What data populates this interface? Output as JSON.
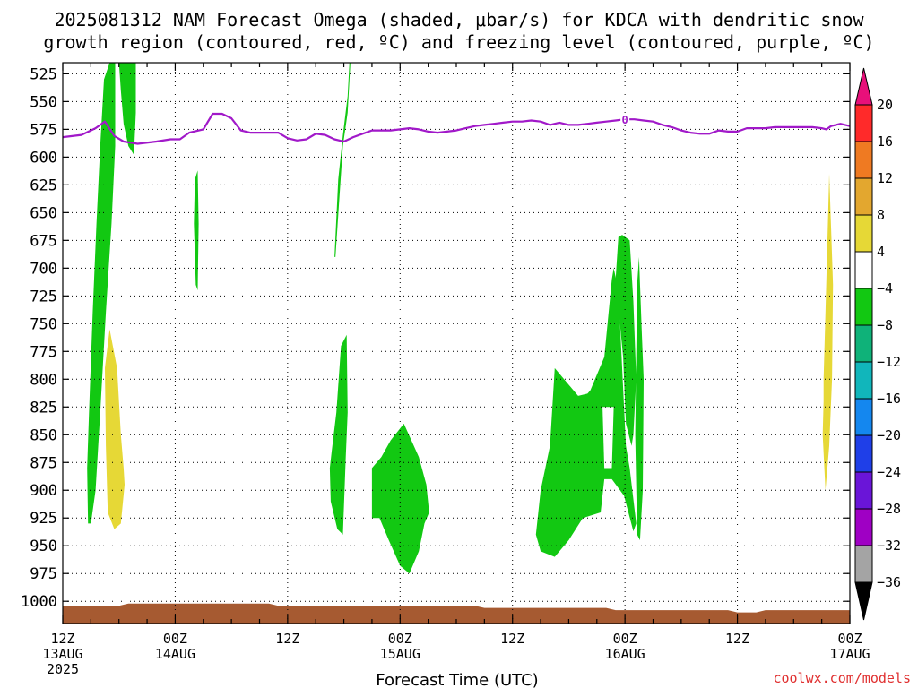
{
  "chart_data": {
    "type": "heatmap",
    "title_line1": "2025081312 NAM Forecast Omega (shaded, μbar/s) for KDCA with dendritic snow",
    "title_line2": "growth region (contoured, red, ºC) and freezing level (contoured, purple, ºC)",
    "xlabel": "Forecast Time (UTC)",
    "credit": "coolwx.com/models",
    "x_range_hours": [
      0,
      84
    ],
    "y_range_mb": [
      1020,
      515
    ],
    "y_ticks": [
      525,
      550,
      575,
      600,
      625,
      650,
      675,
      700,
      725,
      750,
      775,
      800,
      825,
      850,
      875,
      900,
      925,
      950,
      975,
      1000
    ],
    "x_ticks": [
      {
        "hour": 0,
        "line1": "12Z",
        "line2": "13AUG",
        "line3": "2025"
      },
      {
        "hour": 12,
        "line1": "00Z",
        "line2": "14AUG",
        "line3": ""
      },
      {
        "hour": 24,
        "line1": "12Z",
        "line2": "",
        "line3": ""
      },
      {
        "hour": 36,
        "line1": "00Z",
        "line2": "15AUG",
        "line3": ""
      },
      {
        "hour": 48,
        "line1": "12Z",
        "line2": "",
        "line3": ""
      },
      {
        "hour": 60,
        "line1": "00Z",
        "line2": "16AUG",
        "line3": ""
      },
      {
        "hour": 72,
        "line1": "12Z",
        "line2": "",
        "line3": ""
      },
      {
        "hour": 84,
        "line1": "00Z",
        "line2": "17AUG",
        "line3": ""
      }
    ],
    "colorbar": {
      "labels": [
        "20",
        "16",
        "12",
        "8",
        "4",
        "−4",
        "−8",
        "−12",
        "−16",
        "−20",
        "−24",
        "−28",
        "−32",
        "−36"
      ],
      "colors": [
        "#ff2a2a",
        "#ef7a22",
        "#e3a72f",
        "#e6d836",
        "#ffffff",
        "#12c812",
        "#0fb279",
        "#11b6bb",
        "#1487ef",
        "#1f3fe8",
        "#6a15d8",
        "#9f00c4",
        "#a4a4a4"
      ],
      "top_arrow_color": "#e8107a",
      "bottom_arrow_color": "#000000"
    },
    "series": [
      {
        "name": "freezing level",
        "label": "0",
        "color": "#a119c9",
        "points": [
          [
            0,
            582
          ],
          [
            2,
            580
          ],
          [
            3.5,
            574
          ],
          [
            4.5,
            568
          ],
          [
            5.5,
            581
          ],
          [
            6.5,
            586
          ],
          [
            8,
            588
          ],
          [
            10,
            586
          ],
          [
            11.5,
            584
          ],
          [
            12.5,
            584
          ],
          [
            13.5,
            578
          ],
          [
            15,
            575
          ],
          [
            16,
            561
          ],
          [
            17,
            561
          ],
          [
            18,
            565
          ],
          [
            19,
            576
          ],
          [
            20,
            578
          ],
          [
            22,
            578
          ],
          [
            23,
            578
          ],
          [
            24,
            583
          ],
          [
            25,
            585
          ],
          [
            26,
            584
          ],
          [
            27,
            579
          ],
          [
            28,
            580
          ],
          [
            29,
            584
          ],
          [
            30,
            586
          ],
          [
            31,
            582
          ],
          [
            32,
            579
          ],
          [
            33,
            576
          ],
          [
            34,
            576
          ],
          [
            35,
            576
          ],
          [
            36,
            575
          ],
          [
            37,
            574
          ],
          [
            38,
            575
          ],
          [
            39,
            577
          ],
          [
            40,
            578
          ],
          [
            41,
            577
          ],
          [
            42,
            576
          ],
          [
            43,
            574
          ],
          [
            44,
            572
          ],
          [
            45,
            571
          ],
          [
            46,
            570
          ],
          [
            47,
            569
          ],
          [
            48,
            568
          ],
          [
            49,
            568
          ],
          [
            50,
            567
          ],
          [
            51,
            568
          ],
          [
            52,
            571
          ],
          [
            53,
            569
          ],
          [
            54,
            571
          ],
          [
            55,
            571
          ],
          [
            56,
            570
          ],
          [
            57,
            569
          ],
          [
            58,
            568
          ],
          [
            59,
            567
          ],
          [
            60,
            566
          ],
          [
            61,
            566
          ],
          [
            62,
            567
          ],
          [
            63,
            568
          ],
          [
            64,
            571
          ],
          [
            65,
            573
          ],
          [
            66,
            576
          ],
          [
            67,
            578
          ],
          [
            68,
            579
          ],
          [
            69,
            579
          ],
          [
            70,
            576
          ],
          [
            71,
            577
          ],
          [
            72,
            577
          ],
          [
            73,
            574
          ],
          [
            74,
            574
          ],
          [
            75,
            574
          ],
          [
            76,
            573
          ],
          [
            77,
            573
          ],
          [
            78,
            573
          ],
          [
            79,
            573
          ],
          [
            80,
            573
          ],
          [
            81,
            574
          ],
          [
            81.5,
            575
          ],
          [
            82,
            572
          ],
          [
            83,
            570
          ],
          [
            84,
            572
          ]
        ]
      }
    ],
    "omega_regions": [
      {
        "value_bin": "-4 to -8",
        "color": "#12c812",
        "hours": [
          2.6,
          2.8,
          3.2,
          3.6,
          4.0,
          4.4,
          5.0,
          5.6,
          5.6,
          5.2,
          4.6,
          4.0,
          3.5,
          3.0,
          2.7
        ],
        "pressures": [
          880,
          830,
          740,
          660,
          590,
          530,
          515,
          515,
          590,
          660,
          740,
          830,
          900,
          930,
          930
        ]
      },
      {
        "value_bin": "-4 to -8",
        "color": "#12c812",
        "hours": [
          6.0,
          7.0,
          7.8,
          7.8,
          7.6,
          7.0,
          6.5,
          6.2
        ],
        "pressures": [
          515,
          515,
          515,
          560,
          598,
          590,
          570,
          540
        ]
      },
      {
        "value_bin": "-4 to -8",
        "color": "#12c812",
        "hours": [
          14.1,
          14.4,
          14.5,
          14.4,
          14.2,
          14.0
        ],
        "pressures": [
          620,
          612,
          660,
          720,
          715,
          660
        ]
      },
      {
        "value_bin": "-4 to -8",
        "color": "#12c812",
        "hours": [
          29.0,
          29.4,
          29.9,
          30.4,
          30.6,
          30.7,
          30.4,
          29.9,
          29.5,
          29.1,
          29.0
        ],
        "pressures": [
          690,
          620,
          580,
          545,
          515,
          515,
          560,
          590,
          640,
          690,
          690
        ]
      },
      {
        "value_bin": "-4 to -8",
        "color": "#12c812",
        "hours": [
          28.7,
          29.2,
          29.7,
          30.3,
          30.4,
          30.2,
          29.9,
          29.3,
          28.6,
          28.5
        ],
        "pressures": [
          865,
          830,
          770,
          760,
          830,
          870,
          940,
          935,
          910,
          880
        ]
      },
      {
        "value_bin": "-4 to -8",
        "color": "#12c812",
        "hours": [
          33.0,
          34.0,
          35.0,
          36.4,
          38.0,
          38.8,
          39.1,
          38.6,
          38.0,
          37.0,
          36.0,
          34.8,
          33.8,
          33.0
        ],
        "pressures": [
          880,
          870,
          855,
          840,
          870,
          895,
          920,
          930,
          955,
          975,
          968,
          945,
          925,
          925
        ]
      },
      {
        "value_bin": "-4 to -8",
        "color": "#12c812",
        "hours": [
          50.5,
          51.0,
          52.0,
          52.5,
          53.5,
          55.0,
          56.0,
          56.3,
          57.8,
          58.6,
          58.8,
          59.3,
          60.1,
          60.5,
          61.2,
          60.9,
          59.9,
          58.6,
          57.8,
          57.4,
          55.5,
          54.0,
          52.5,
          51.0,
          50.5
        ],
        "pressures": [
          940,
          900,
          860,
          790,
          800,
          815,
          813,
          810,
          780,
          710,
          700,
          720,
          860,
          880,
          930,
          937,
          905,
          890,
          890,
          920,
          925,
          945,
          960,
          955,
          940
        ]
      },
      {
        "value_bin": "-4 to -8",
        "color": "#12c812",
        "hours": [
          59.0,
          59.3,
          59.7,
          60.5,
          60.9,
          61.2,
          60.9,
          60.7,
          60.1,
          59.8
        ],
        "pressures": [
          710,
          672,
          670,
          675,
          730,
          800,
          850,
          860,
          840,
          780
        ]
      },
      {
        "value_bin": "-4 to -8",
        "color": "#12c812",
        "hours": [
          61.3,
          61.5,
          61.8,
          62.0,
          61.9,
          61.6,
          61.3,
          61.1
        ],
        "pressures": [
          715,
          690,
          760,
          800,
          900,
          945,
          940,
          850
        ]
      }
    ],
    "omega_holes": [
      {
        "hours": [
          57.6,
          58.8,
          58.6,
          57.8
        ],
        "pressures": [
          825,
          825,
          880,
          880
        ]
      }
    ],
    "positive_regions": [
      {
        "value_bin": "4 to 8",
        "color": "#e6d836",
        "hours": [
          4.5,
          5.0,
          5.8,
          6.2,
          6.5,
          6.6,
          6.2,
          5.5,
          4.8,
          4.6
        ],
        "pressures": [
          790,
          755,
          790,
          850,
          880,
          895,
          930,
          935,
          920,
          860
        ]
      },
      {
        "value_bin": "4 to 8",
        "color": "#e6d836",
        "hours": [
          81.2,
          81.4,
          81.8,
          82.2,
          82.1,
          81.8,
          81.4,
          81.1,
          81.2
        ],
        "pressures": [
          800,
          740,
          615,
          715,
          800,
          860,
          900,
          850,
          820
        ]
      }
    ],
    "terrain": {
      "color": "#a65a31",
      "hours": [
        0,
        6,
        7,
        22,
        23,
        44,
        45,
        58,
        59,
        71,
        72,
        74,
        75,
        84
      ],
      "pressures": [
        1004,
        1004,
        1002,
        1002,
        1004,
        1004,
        1006,
        1006,
        1008,
        1008,
        1010,
        1010,
        1008,
        1008
      ]
    }
  }
}
